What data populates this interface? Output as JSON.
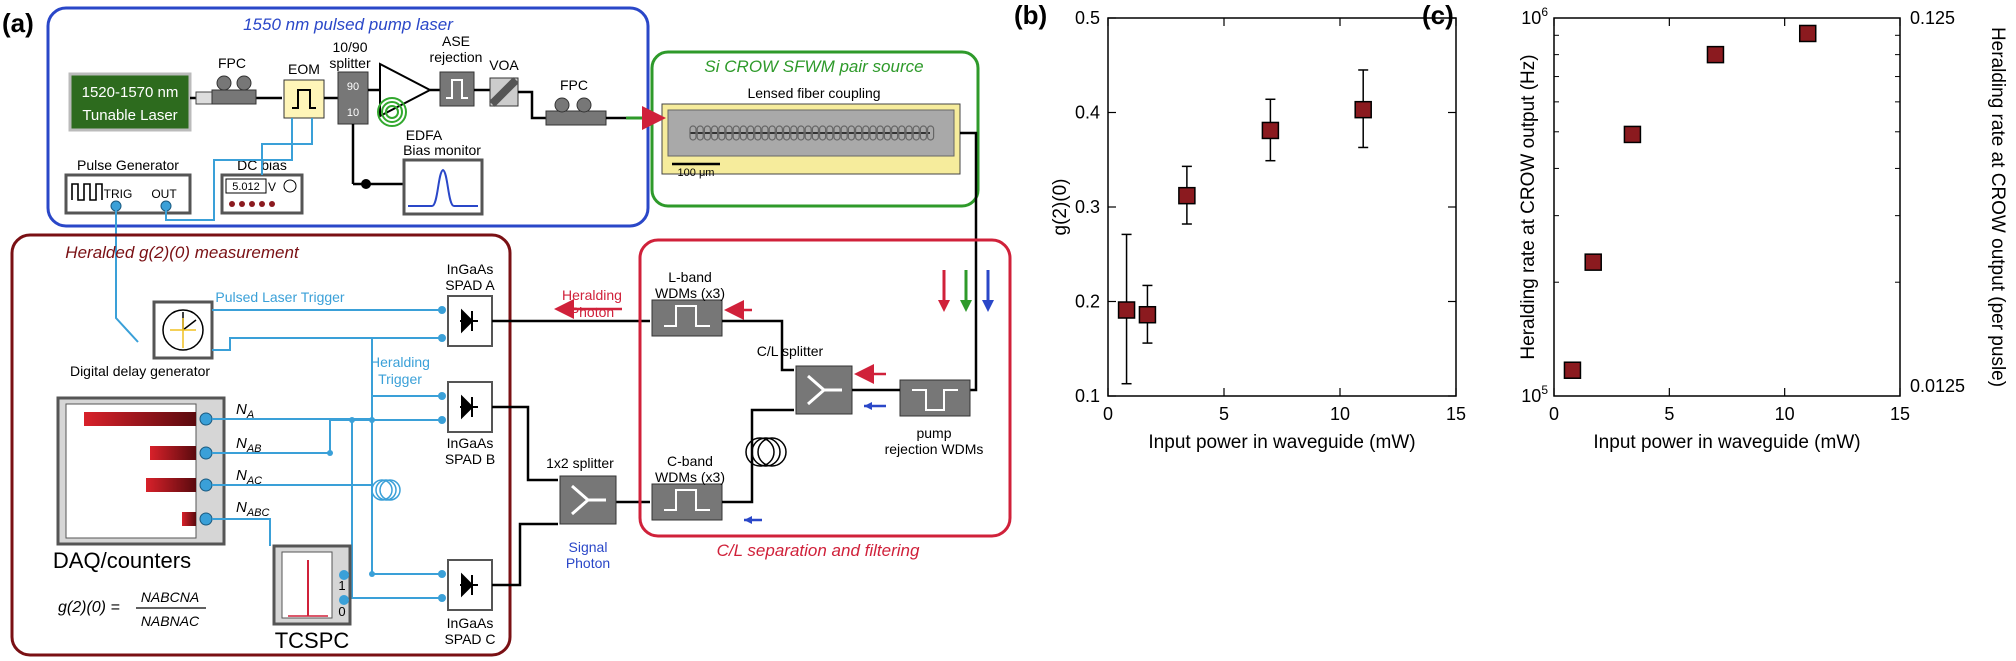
{
  "panel_a": {
    "label": "(a)",
    "pump_title": "1550 nm pulsed pump laser",
    "laser_line1": "1520-1570 nm",
    "laser_line2": "Tunable Laser",
    "fpc": "FPC",
    "eom": "EOM",
    "splitter_top": "10/90",
    "splitter_bottom": "splitter",
    "splitter_90": "90",
    "splitter_10": "10",
    "ase_line1": "ASE",
    "ase_line2": "rejection",
    "voa": "VOA",
    "edfa": "EDFA",
    "fpc2": "FPC",
    "bias_monitor": "Bias monitor",
    "pulse_generator": "Pulse Generator",
    "trig": "TRIG",
    "out": "OUT",
    "dc_bias": "DC bias",
    "dc_value": "5.012",
    "dc_unit": "V",
    "crow_title": "Si CROW SFWM pair source",
    "lensed": "Lensed fiber coupling",
    "scale": "100 μm",
    "heralded_title": "Heralded g(2)(0) measurement",
    "pulsed_trigger": "Pulsed Laser Trigger",
    "heralding_trigger_1": "Heralding",
    "heralding_trigger_2": "Trigger",
    "delay_gen": "Digital delay generator",
    "spad_a_1": "InGaAs",
    "spad_a_2": "SPAD A",
    "spad_b_1": "InGaAs",
    "spad_b_2": "SPAD B",
    "spad_c_1": "InGaAs",
    "spad_c_2": "SPAD C",
    "na": "N",
    "na_sub": "A",
    "nab": "N",
    "nab_sub": "AB",
    "nac": "N",
    "nac_sub": "AC",
    "nabc": "N",
    "nabc_sub": "ABC",
    "daq": "DAQ/counters",
    "tcspc": "TCSPC",
    "tcspc_1": "1",
    "tcspc_0": "0",
    "formula_lhs": "g(2)(0) =",
    "formula_num": "NABCNA",
    "formula_den": "NABNAC",
    "heralding_photon_1": "Heralding",
    "heralding_photon_2": "Photon",
    "signal_photon_1": "Signal",
    "signal_photon_2": "Photon",
    "lband_1": "L-band",
    "lband_2": "WDMs (x3)",
    "cband_1": "C-band",
    "cband_2": "WDMs (x3)",
    "cl_splitter": "C/L splitter",
    "one_two_splitter": "1x2 splitter",
    "pump_rej_1": "pump",
    "pump_rej_2": "rejection WDMs",
    "cl_title": "C/L separation and filtering",
    "colors": {
      "blue_box": "#2a47c8",
      "green_box": "#2e9a2a",
      "red_box": "#d0213a",
      "dark_red_box": "#7a1014",
      "laser_green": "#2d6b1e",
      "cyan_wire": "#3aa0d8",
      "device_gray": "#7b7b7b"
    }
  },
  "panel_b": {
    "label": "(b)",
    "chart_data": {
      "type": "scatter",
      "xlabel": "Input power in waveguide (mW)",
      "ylabel": "g(2)(0)",
      "xlim": [
        0,
        15
      ],
      "ylim": [
        0.1,
        0.5
      ],
      "xticks": [
        "0",
        "5",
        "10",
        "15"
      ],
      "yticks": [
        "0.1",
        "0.2",
        "0.3",
        "0.4",
        "0.5"
      ],
      "x": [
        0.8,
        1.7,
        3.4,
        7.0,
        11.0
      ],
      "y": [
        0.191,
        0.186,
        0.312,
        0.381,
        0.403
      ],
      "yerr_low": [
        0.113,
        0.156,
        0.282,
        0.349,
        0.363
      ],
      "yerr_high": [
        0.271,
        0.217,
        0.343,
        0.414,
        0.445
      ],
      "marker_color": "#8b1a1f"
    }
  },
  "panel_c": {
    "label": "(c)",
    "chart_data": {
      "type": "scatter",
      "xlabel": "Input power in waveguide (mW)",
      "ylabel": "Heralding rate at CROW output (Hz)",
      "ylabel_right": "Heralding rate at CROW output (per pusle)",
      "xlim": [
        0,
        15
      ],
      "ylim": [
        100000,
        1000000
      ],
      "y_scale": "log",
      "xticks": [
        "0",
        "5",
        "10",
        "15"
      ],
      "ytick_bottom": "10",
      "ytick_bottom_exp": "5",
      "ytick_top": "10",
      "ytick_top_exp": "6",
      "yright_top": "0.125",
      "yright_bottom": "0.0125",
      "x": [
        0.8,
        1.7,
        3.4,
        7.0,
        11.0
      ],
      "y": [
        117000,
        226000,
        492000,
        800000,
        910000
      ],
      "marker_color": "#8b1a1f"
    }
  }
}
